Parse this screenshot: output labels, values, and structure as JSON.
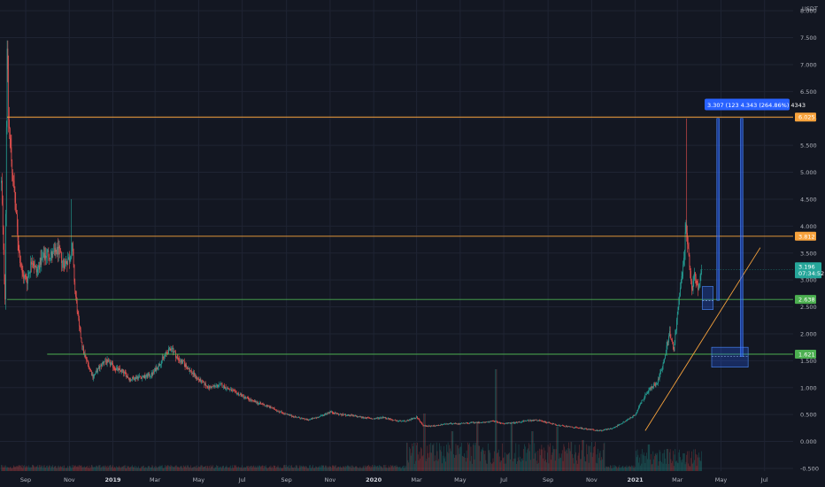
{
  "chart_data": {
    "type": "candlestick",
    "currency": "USDT",
    "y_axis": {
      "ticks": [
        "8.000",
        "7.500",
        "7.000",
        "6.500",
        "6.000",
        "5.500",
        "5.000",
        "4.500",
        "4.000",
        "3.500",
        "3.000",
        "2.500",
        "2.000",
        "1.500",
        "1.000",
        "0.500",
        "0.000",
        "-0.500"
      ],
      "tick_values": [
        8.0,
        7.5,
        7.0,
        6.5,
        6.0,
        5.5,
        5.0,
        4.5,
        4.0,
        3.5,
        3.0,
        2.5,
        2.0,
        1.5,
        1.0,
        0.5,
        0.0,
        -0.5
      ],
      "ylim": [
        -0.55,
        8.2
      ]
    },
    "x_axis": {
      "labels": [
        {
          "text": "Sep",
          "date": "2018-09-01",
          "bold": false
        },
        {
          "text": "Nov",
          "date": "2018-11-01",
          "bold": false
        },
        {
          "text": "2019",
          "date": "2019-01-01",
          "bold": true
        },
        {
          "text": "Mar",
          "date": "2019-03-01",
          "bold": false
        },
        {
          "text": "May",
          "date": "2019-05-01",
          "bold": false
        },
        {
          "text": "Jul",
          "date": "2019-07-01",
          "bold": false
        },
        {
          "text": "Sep",
          "date": "2019-09-01",
          "bold": false
        },
        {
          "text": "Nov",
          "date": "2019-11-01",
          "bold": false
        },
        {
          "text": "2020",
          "date": "2020-01-01",
          "bold": true
        },
        {
          "text": "Mar",
          "date": "2020-03-01",
          "bold": false
        },
        {
          "text": "May",
          "date": "2020-05-01",
          "bold": false
        },
        {
          "text": "Jul",
          "date": "2020-07-01",
          "bold": false
        },
        {
          "text": "Sep",
          "date": "2020-09-01",
          "bold": false
        },
        {
          "text": "Nov",
          "date": "2020-11-01",
          "bold": false
        },
        {
          "text": "2021",
          "date": "2021-01-01",
          "bold": true
        },
        {
          "text": "Mar",
          "date": "2021-03-01",
          "bold": false
        },
        {
          "text": "May",
          "date": "2021-05-01",
          "bold": false
        },
        {
          "text": "Jul",
          "date": "2021-07-01",
          "bold": false
        }
      ],
      "xlim": [
        "2018-07-27",
        "2021-08-10"
      ]
    },
    "price_path": [
      [
        "2018-07-29",
        4.8
      ],
      [
        "2018-08-01",
        3.5
      ],
      [
        "2018-08-03",
        2.7
      ],
      [
        "2018-08-06",
        7.45
      ],
      [
        "2018-08-08",
        6.0
      ],
      [
        "2018-08-11",
        5.4
      ],
      [
        "2018-08-14",
        4.9
      ],
      [
        "2018-08-18",
        4.3
      ],
      [
        "2018-08-22",
        3.6
      ],
      [
        "2018-08-27",
        3.1
      ],
      [
        "2018-09-03",
        3.0
      ],
      [
        "2018-09-10",
        3.4
      ],
      [
        "2018-09-16",
        3.15
      ],
      [
        "2018-09-22",
        3.35
      ],
      [
        "2018-10-01",
        3.5
      ],
      [
        "2018-10-08",
        3.45
      ],
      [
        "2018-10-16",
        3.55
      ],
      [
        "2018-10-24",
        3.3
      ],
      [
        "2018-11-01",
        3.4
      ],
      [
        "2018-11-05",
        3.6
      ],
      [
        "2018-11-09",
        2.8
      ],
      [
        "2018-11-15",
        2.1
      ],
      [
        "2018-11-21",
        1.65
      ],
      [
        "2018-11-27",
        1.45
      ],
      [
        "2018-12-04",
        1.2
      ],
      [
        "2018-12-12",
        1.35
      ],
      [
        "2018-12-20",
        1.5
      ],
      [
        "2018-12-28",
        1.45
      ],
      [
        "2019-01-05",
        1.35
      ],
      [
        "2019-01-15",
        1.3
      ],
      [
        "2019-01-25",
        1.15
      ],
      [
        "2019-02-05",
        1.2
      ],
      [
        "2019-02-15",
        1.2
      ],
      [
        "2019-02-25",
        1.25
      ],
      [
        "2019-03-05",
        1.4
      ],
      [
        "2019-03-15",
        1.6
      ],
      [
        "2019-03-24",
        1.75
      ],
      [
        "2019-04-01",
        1.55
      ],
      [
        "2019-04-10",
        1.45
      ],
      [
        "2019-04-20",
        1.3
      ],
      [
        "2019-05-01",
        1.15
      ],
      [
        "2019-05-15",
        1.0
      ],
      [
        "2019-06-01",
        1.05
      ],
      [
        "2019-06-15",
        0.95
      ],
      [
        "2019-07-01",
        0.85
      ],
      [
        "2019-07-15",
        0.75
      ],
      [
        "2019-08-01",
        0.68
      ],
      [
        "2019-08-15",
        0.6
      ],
      [
        "2019-09-01",
        0.5
      ],
      [
        "2019-09-15",
        0.45
      ],
      [
        "2019-10-01",
        0.4
      ],
      [
        "2019-10-15",
        0.45
      ],
      [
        "2019-11-01",
        0.55
      ],
      [
        "2019-11-15",
        0.5
      ],
      [
        "2019-12-01",
        0.48
      ],
      [
        "2019-12-15",
        0.45
      ],
      [
        "2020-01-01",
        0.42
      ],
      [
        "2020-01-15",
        0.45
      ],
      [
        "2020-02-01",
        0.38
      ],
      [
        "2020-02-15",
        0.38
      ],
      [
        "2020-03-01",
        0.45
      ],
      [
        "2020-03-10",
        0.3
      ],
      [
        "2020-03-20",
        0.28
      ],
      [
        "2020-04-01",
        0.3
      ],
      [
        "2020-04-15",
        0.33
      ],
      [
        "2020-05-01",
        0.33
      ],
      [
        "2020-05-15",
        0.35
      ],
      [
        "2020-06-01",
        0.35
      ],
      [
        "2020-06-15",
        0.38
      ],
      [
        "2020-07-01",
        0.33
      ],
      [
        "2020-07-15",
        0.35
      ],
      [
        "2020-08-01",
        0.38
      ],
      [
        "2020-08-15",
        0.4
      ],
      [
        "2020-09-01",
        0.35
      ],
      [
        "2020-09-15",
        0.3
      ],
      [
        "2020-10-01",
        0.27
      ],
      [
        "2020-10-15",
        0.25
      ],
      [
        "2020-11-01",
        0.22
      ],
      [
        "2020-11-15",
        0.2
      ],
      [
        "2020-12-01",
        0.25
      ],
      [
        "2020-12-15",
        0.35
      ],
      [
        "2021-01-01",
        0.5
      ],
      [
        "2021-01-10",
        0.75
      ],
      [
        "2021-01-20",
        0.95
      ],
      [
        "2021-02-01",
        1.1
      ],
      [
        "2021-02-10",
        1.5
      ],
      [
        "2021-02-18",
        2.0
      ],
      [
        "2021-02-24",
        1.7
      ],
      [
        "2021-03-01",
        2.4
      ],
      [
        "2021-03-05",
        2.8
      ],
      [
        "2021-03-09",
        3.2
      ],
      [
        "2021-03-13",
        4.0
      ],
      [
        "2021-03-17",
        3.4
      ],
      [
        "2021-03-21",
        2.8
      ],
      [
        "2021-03-25",
        3.1
      ],
      [
        "2021-03-30",
        2.9
      ],
      [
        "2021-04-04",
        3.196
      ]
    ],
    "volume_spikes": [
      [
        "2020-03-12",
        0.65
      ],
      [
        "2020-04-20",
        0.45
      ],
      [
        "2020-05-25",
        0.55
      ],
      [
        "2020-06-20",
        1.15
      ],
      [
        "2020-07-12",
        0.55
      ],
      [
        "2020-08-10",
        0.45
      ],
      [
        "2020-09-14",
        0.5
      ],
      [
        "2020-10-20",
        0.35
      ],
      [
        "2021-01-20",
        0.3
      ],
      [
        "2021-02-15",
        0.25
      ],
      [
        "2021-03-10",
        0.2
      ]
    ],
    "horizontal_levels": [
      {
        "price": 6.025,
        "label": "6.025",
        "color": "#f7a23c"
      },
      {
        "price": 3.812,
        "label": "3.812",
        "color": "#f7a23c"
      },
      {
        "price": 2.638,
        "label": "2.638",
        "color": "#4caf50"
      },
      {
        "price": 1.621,
        "label": "1.621",
        "color": "#4caf50"
      }
    ],
    "current_price": {
      "price": 3.196,
      "label": "3.196",
      "countdown": "07:34:52",
      "color": "#26a69a"
    },
    "trendline": {
      "color": "#f7a23c",
      "points": [
        [
          "2021-01-15",
          0.2
        ],
        [
          "2021-06-25",
          3.6
        ]
      ]
    },
    "measure_tooltip": {
      "text": "3.307 (123  4.343 (264.86%) 4343",
      "color": "#2962ff"
    }
  }
}
